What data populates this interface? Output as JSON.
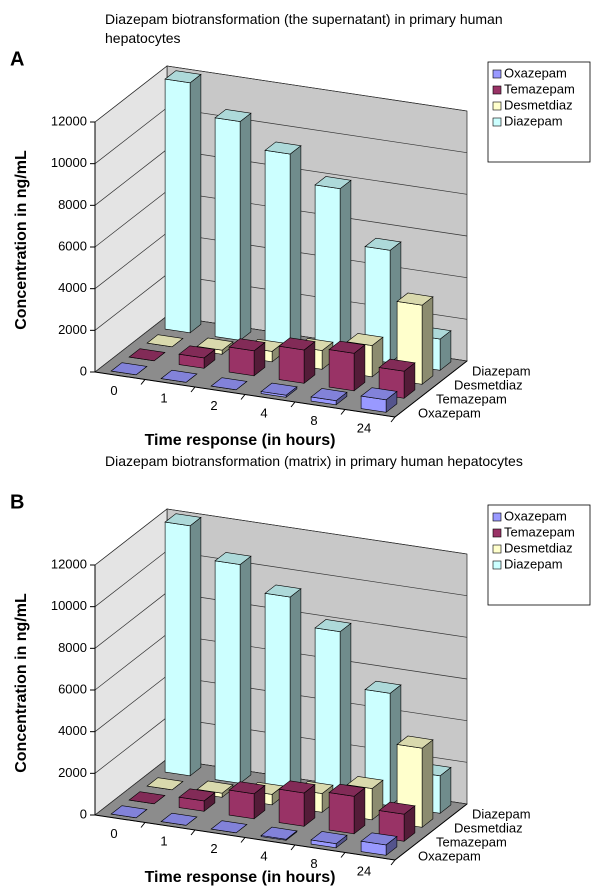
{
  "chart_data": [
    {
      "type": "bar",
      "panel": "A",
      "title": "Diazepam biotransformation (the supernatant) in primary human hepatocytes",
      "ylabel": "Concentration in ng/mL",
      "xlabel": "Time response (in hours)",
      "categories": [
        "0",
        "1",
        "2",
        "4",
        "8",
        "24"
      ],
      "series": [
        {
          "name": "Oxazepam",
          "color": "#9999ff",
          "values": [
            0,
            0,
            0,
            100,
            200,
            600
          ]
        },
        {
          "name": "Temazepam",
          "color": "#993366",
          "values": [
            0,
            500,
            1200,
            1600,
            1800,
            1300
          ]
        },
        {
          "name": "Desmetdiaz",
          "color": "#ffffcc",
          "values": [
            0,
            200,
            500,
            900,
            1500,
            3800
          ]
        },
        {
          "name": "Diazepam",
          "color": "#ccffff",
          "values": [
            12000,
            10500,
            9300,
            8000,
            5400,
            1500
          ]
        }
      ],
      "ylim": [
        0,
        12000
      ],
      "yticks": [
        0,
        2000,
        4000,
        6000,
        8000,
        10000,
        12000
      ],
      "grid": true
    },
    {
      "type": "bar",
      "panel": "B",
      "title": "Diazepam biotransformation (matrix) in primary human hepatocytes",
      "ylabel": "Concentration in ng/mL",
      "xlabel": "Time response (in hours)",
      "categories": [
        "0",
        "1",
        "2",
        "4",
        "8",
        "24"
      ],
      "series": [
        {
          "name": "Oxazepam",
          "color": "#9999ff",
          "values": [
            0,
            0,
            0,
            50,
            200,
            500
          ]
        },
        {
          "name": "Temazepam",
          "color": "#993366",
          "values": [
            0,
            500,
            1200,
            1600,
            1800,
            1300
          ]
        },
        {
          "name": "Desmetdiaz",
          "color": "#ffffcc",
          "values": [
            0,
            200,
            500,
            900,
            1500,
            3800
          ]
        },
        {
          "name": "Diazepam",
          "color": "#ccffff",
          "values": [
            12000,
            10500,
            9300,
            8000,
            5400,
            1800
          ]
        }
      ],
      "ylim": [
        0,
        12000
      ],
      "yticks": [
        0,
        2000,
        4000,
        6000,
        8000,
        10000,
        12000
      ],
      "grid": true
    }
  ]
}
